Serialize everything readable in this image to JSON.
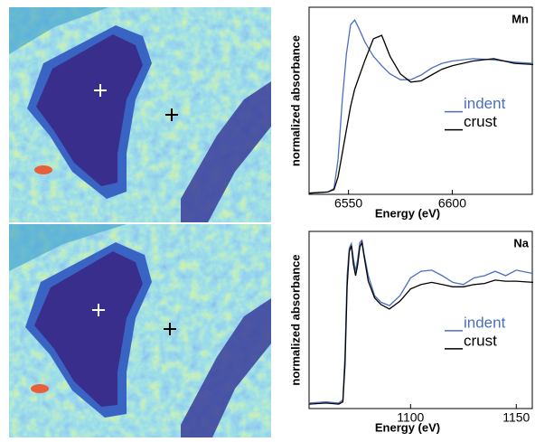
{
  "chart_data": [
    {
      "type": "line",
      "annotation": "Mn",
      "xlabel": "Energy (eV)",
      "ylabel": "normalized absorbance",
      "xlim": [
        6531,
        6639
      ],
      "ylim": [
        0,
        1.6
      ],
      "xticks": [
        6550,
        6600
      ],
      "legend": "right",
      "x": [
        6531,
        6540,
        6543,
        6545,
        6547,
        6549,
        6551,
        6553,
        6555,
        6558,
        6562,
        6566,
        6570,
        6575,
        6580,
        6585,
        6590,
        6595,
        6600,
        6610,
        6620,
        6630,
        6639
      ],
      "series": [
        {
          "name": "indent",
          "color": "#4a6fc0",
          "values": [
            0.01,
            0.02,
            0.05,
            0.3,
            0.8,
            1.2,
            1.45,
            1.49,
            1.42,
            1.3,
            1.18,
            1.1,
            1.03,
            0.98,
            0.98,
            1.02,
            1.08,
            1.12,
            1.14,
            1.16,
            1.15,
            1.13,
            1.12
          ]
        },
        {
          "name": "crust",
          "color": "#000000",
          "values": [
            0.01,
            0.02,
            0.04,
            0.15,
            0.35,
            0.55,
            0.75,
            0.9,
            1.0,
            1.15,
            1.33,
            1.36,
            1.18,
            1.03,
            0.96,
            0.97,
            1.02,
            1.07,
            1.1,
            1.14,
            1.16,
            1.12,
            1.11
          ]
        }
      ]
    },
    {
      "type": "line",
      "annotation": "Na",
      "xlabel": "Energy (eV)",
      "ylabel": "normalized absorbance",
      "xlim": [
        1052,
        1158
      ],
      "ylim": [
        0,
        1.6
      ],
      "xticks": [
        1100,
        1150
      ],
      "legend": "right",
      "x": [
        1052,
        1060,
        1066,
        1068,
        1069,
        1070,
        1071,
        1072,
        1073,
        1074,
        1075,
        1076,
        1077,
        1078,
        1080,
        1083,
        1086,
        1090,
        1095,
        1100,
        1105,
        1110,
        1115,
        1120,
        1125,
        1130,
        1135,
        1140,
        1145,
        1150,
        1158
      ],
      "series": [
        {
          "name": "indent",
          "color": "#4a6fc0",
          "values": [
            0.05,
            0.06,
            0.05,
            0.08,
            0.5,
            1.2,
            1.45,
            1.49,
            1.35,
            1.24,
            1.35,
            1.5,
            1.52,
            1.4,
            1.2,
            1.02,
            0.96,
            0.93,
            1.02,
            1.18,
            1.24,
            1.25,
            1.2,
            1.14,
            1.12,
            1.18,
            1.2,
            1.24,
            1.2,
            1.25,
            1.22
          ]
        },
        {
          "name": "crust",
          "color": "#000000",
          "values": [
            0.04,
            0.05,
            0.04,
            0.06,
            0.4,
            1.1,
            1.42,
            1.47,
            1.3,
            1.2,
            1.3,
            1.46,
            1.5,
            1.38,
            1.15,
            1.0,
            0.94,
            0.9,
            0.97,
            1.08,
            1.12,
            1.14,
            1.12,
            1.1,
            1.1,
            1.12,
            1.13,
            1.16,
            1.15,
            1.15,
            1.14
          ]
        }
      ]
    }
  ]
}
